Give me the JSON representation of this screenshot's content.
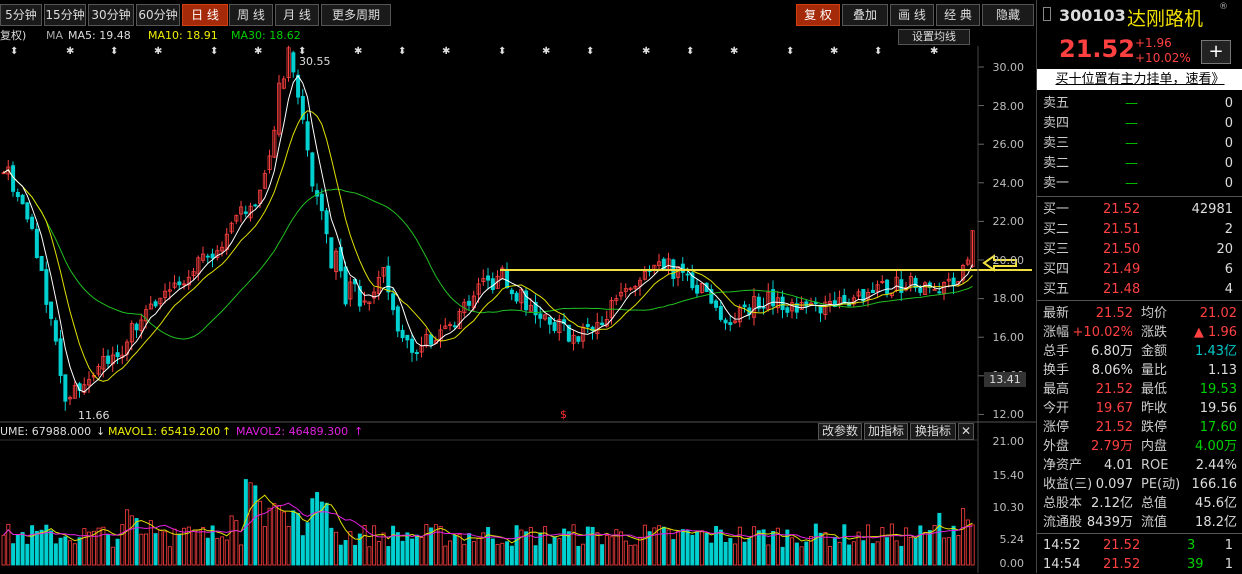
{
  "toolbar": {
    "periods": [
      "5分钟",
      "15分钟",
      "30分钟",
      "60分钟",
      "日 线",
      "周 线",
      "月 线",
      "更多周期"
    ],
    "active_period": "日 线",
    "right_buttons": [
      "复 权",
      "叠加",
      "画 线",
      "经 典",
      "隐藏"
    ]
  },
  "indicators": {
    "prefix": "复权)",
    "ma_label": "MA",
    "ma5": "MA5: 19.48",
    "ma10": "MA10: 18.91",
    "ma30": "MA30: 18.62",
    "settings": "设置均线"
  },
  "price_axis": [
    "30.00",
    "28.00",
    "26.00",
    "24.00",
    "22.00",
    "20.00",
    "18.00",
    "16.00",
    "14.00",
    "12.00"
  ],
  "price_annotations": {
    "high": "30.55",
    "low": "11.66",
    "current_tag": "13.41"
  },
  "volume": {
    "vol": "UME: 67988.000",
    "mavol1": "MAVOL1: 65419.200",
    "mavol2": "MAVOL2: 46489.300",
    "buttons": [
      "改参数",
      "加指标",
      "换指标",
      "✕"
    ],
    "axis": [
      "21.00",
      "15.40",
      "10.30",
      "5.24",
      "0.00"
    ]
  },
  "quote": {
    "code": "300103",
    "name": "达刚路机",
    "price": "21.52",
    "change": "+1.96",
    "change_pct": "+10.02%",
    "add_btn": "+",
    "banner": "买十位置有主力挂单，速看》",
    "asks": [
      {
        "label": "卖五",
        "price": "—",
        "vol": "0"
      },
      {
        "label": "卖四",
        "price": "—",
        "vol": "0"
      },
      {
        "label": "卖三",
        "price": "—",
        "vol": "0"
      },
      {
        "label": "卖二",
        "price": "—",
        "vol": "0"
      },
      {
        "label": "卖一",
        "price": "—",
        "vol": "0"
      }
    ],
    "bids": [
      {
        "label": "买一",
        "price": "21.52",
        "vol": "42981"
      },
      {
        "label": "买二",
        "price": "21.51",
        "vol": "2"
      },
      {
        "label": "买三",
        "price": "21.50",
        "vol": "20"
      },
      {
        "label": "买四",
        "price": "21.49",
        "vol": "6"
      },
      {
        "label": "买五",
        "price": "21.48",
        "vol": "4"
      }
    ],
    "stats": [
      {
        "l1": "最新",
        "v1": "21.52",
        "l2": "均价",
        "v2": "21.02"
      },
      {
        "l1": "涨幅",
        "v1": "+10.02%",
        "l2": "涨跌",
        "v2": "▲ 1.96"
      },
      {
        "l1": "总手",
        "v1": "6.80万",
        "l2": "金额",
        "v2": "1.43亿"
      },
      {
        "l1": "换手",
        "v1": "8.06%",
        "l2": "量比",
        "v2": "1.13"
      },
      {
        "l1": "最高",
        "v1": "21.52",
        "l2": "最低",
        "v2": "19.53"
      },
      {
        "l1": "今开",
        "v1": "19.67",
        "l2": "昨收",
        "v2": "19.56"
      },
      {
        "l1": "涨停",
        "v1": "21.52",
        "l2": "跌停",
        "v2": "17.60"
      },
      {
        "l1": "外盘",
        "v1": "2.79万",
        "l2": "内盘",
        "v2": "4.00万"
      },
      {
        "l1": "净资产",
        "v1": "4.01",
        "l2": "ROE",
        "v2": "2.44%"
      },
      {
        "l1": "收益(三)",
        "v1": "0.097",
        "l2": "PE(动)",
        "v2": "166.16"
      },
      {
        "l1": "总股本",
        "v1": "2.12亿",
        "l2": "总值",
        "v2": "45.6亿"
      },
      {
        "l1": "流通股",
        "v1": "8439万",
        "l2": "流值",
        "v2": "18.2亿"
      }
    ],
    "ticks": [
      {
        "time": "14:52",
        "price": "21.52",
        "vol": "3",
        "n": "1"
      },
      {
        "time": "14:54",
        "price": "21.52",
        "vol": "39",
        "n": "1"
      }
    ]
  },
  "colors": {
    "up": "#ff4040",
    "down": "#00d0d0",
    "ma5": "#ffffff",
    "ma10": "#e0e000",
    "ma30": "#20c020",
    "mavol2": "#e020e0",
    "hline": "#f0e040"
  }
}
